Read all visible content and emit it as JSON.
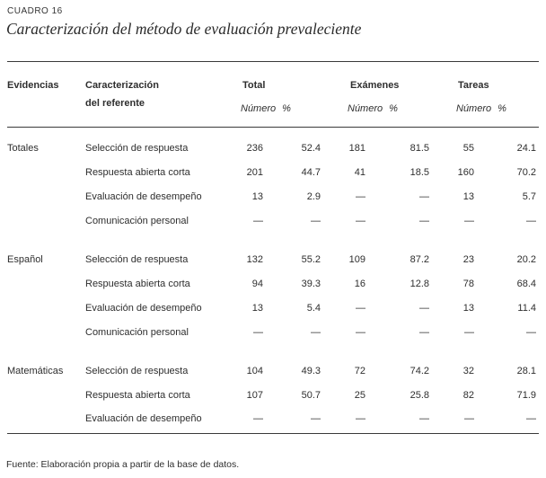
{
  "title": {
    "kicker": "CUADRO 16",
    "subtitle": "Caracterización del método de evaluación prevaleciente"
  },
  "table": {
    "columns": {
      "evidencias": "Evidencias",
      "caracterizacion_line1": "Caracterización",
      "caracterizacion_line2": "del referente",
      "groups": [
        {
          "label": "Total"
        },
        {
          "label": "Exámenes"
        },
        {
          "label": "Tareas"
        }
      ],
      "numero": "Número",
      "pct": "%"
    },
    "sections": [
      {
        "evidencia": "Totales",
        "rows": [
          {
            "label": "Selección de respuesta",
            "values": [
              "236",
              "52.4",
              "181",
              "81.5",
              "55",
              "24.1"
            ]
          },
          {
            "label": "Respuesta abierta corta",
            "values": [
              "201",
              "44.7",
              "41",
              "18.5",
              "160",
              "70.2"
            ]
          },
          {
            "label": "Evaluación de desempeño",
            "values": [
              "13",
              "2.9",
              "—",
              "—",
              "13",
              "5.7"
            ]
          },
          {
            "label": "Comunicación personal",
            "values": [
              "—",
              "—",
              "—",
              "—",
              "—",
              "—"
            ]
          }
        ]
      },
      {
        "evidencia": "Español",
        "rows": [
          {
            "label": "Selección de respuesta",
            "values": [
              "132",
              "55.2",
              "109",
              "87.2",
              "23",
              "20.2"
            ]
          },
          {
            "label": "Respuesta abierta corta",
            "values": [
              "94",
              "39.3",
              "16",
              "12.8",
              "78",
              "68.4"
            ]
          },
          {
            "label": "Evaluación de desempeño",
            "values": [
              "13",
              "5.4",
              "—",
              "—",
              "13",
              "11.4"
            ]
          },
          {
            "label": "Comunicación personal",
            "values": [
              "—",
              "—",
              "—",
              "—",
              "—",
              "—"
            ]
          }
        ]
      },
      {
        "evidencia": "Matemáticas",
        "rows": [
          {
            "label": "Selección de respuesta",
            "values": [
              "104",
              "49.3",
              "72",
              "74.2",
              "32",
              "28.1"
            ]
          },
          {
            "label": "Respuesta abierta corta",
            "values": [
              "107",
              "50.7",
              "25",
              "25.8",
              "82",
              "71.9"
            ]
          },
          {
            "label": "Evaluación de desempeño",
            "values": [
              "—",
              "—",
              "—",
              "—",
              "—",
              "—"
            ]
          }
        ]
      }
    ]
  },
  "footer": {
    "source": "Fuente: Elaboración propia a partir de la base de datos."
  }
}
